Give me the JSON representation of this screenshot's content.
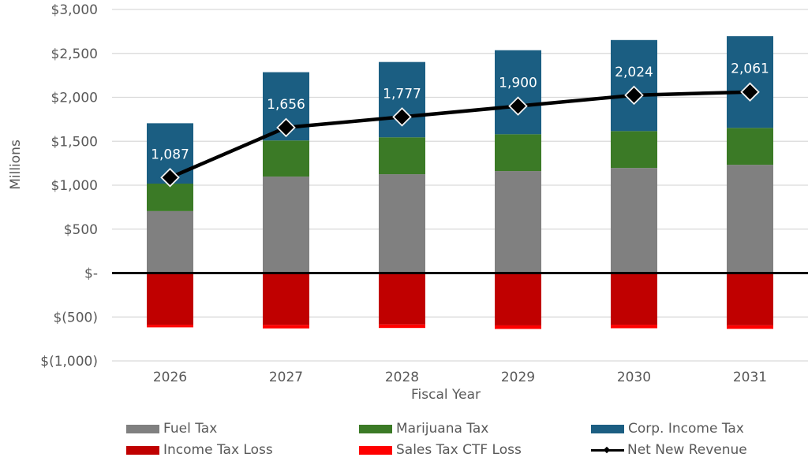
{
  "chart_data": {
    "type": "bar",
    "subtype": "stacked-bar-with-line",
    "title": "",
    "xlabel": "Fiscal Year",
    "ylabel": "Millions",
    "ylim": [
      -1000,
      3000
    ],
    "yticks": [
      3000,
      2500,
      2000,
      1500,
      1000,
      500,
      0,
      -500,
      -1000
    ],
    "ytick_labels": [
      "$3,000",
      "$2,500",
      "$2,000",
      "$1,500",
      "$1,000",
      "$500",
      "$-",
      "$(500)",
      "$(1,000)"
    ],
    "grid": true,
    "legend_position": "bottom",
    "categories": [
      "2026",
      "2027",
      "2028",
      "2029",
      "2030",
      "2031"
    ],
    "series": [
      {
        "name": "Fuel Tax",
        "type": "bar",
        "color": "#808080",
        "values": [
          705,
          1098,
          1125,
          1161,
          1196,
          1232
        ]
      },
      {
        "name": "Marijuana Tax",
        "type": "bar",
        "color": "#3b7a26",
        "values": [
          313,
          411,
          420,
          419,
          420,
          420
        ]
      },
      {
        "name": "Corp. Income Tax",
        "type": "bar",
        "color": "#1b5e82",
        "values": [
          687,
          777,
          857,
          956,
          1036,
          1044
        ]
      },
      {
        "name": "Income Tax Loss",
        "type": "bar",
        "color": "#c00000",
        "values": [
          -588,
          -590,
          -585,
          -596,
          -588,
          -595
        ]
      },
      {
        "name": "Sales Tax CTF Loss",
        "type": "bar",
        "color": "#ff0000",
        "values": [
          -30,
          -40,
          -40,
          -40,
          -40,
          -40
        ]
      },
      {
        "name": "Net New Revenue",
        "type": "line",
        "color": "#000000",
        "values": [
          1087,
          1656,
          1777,
          1900,
          2024,
          2061
        ]
      }
    ],
    "data_labels": [
      "1,087",
      "1,656",
      "1,777",
      "1,900",
      "2,024",
      "2,061"
    ]
  }
}
